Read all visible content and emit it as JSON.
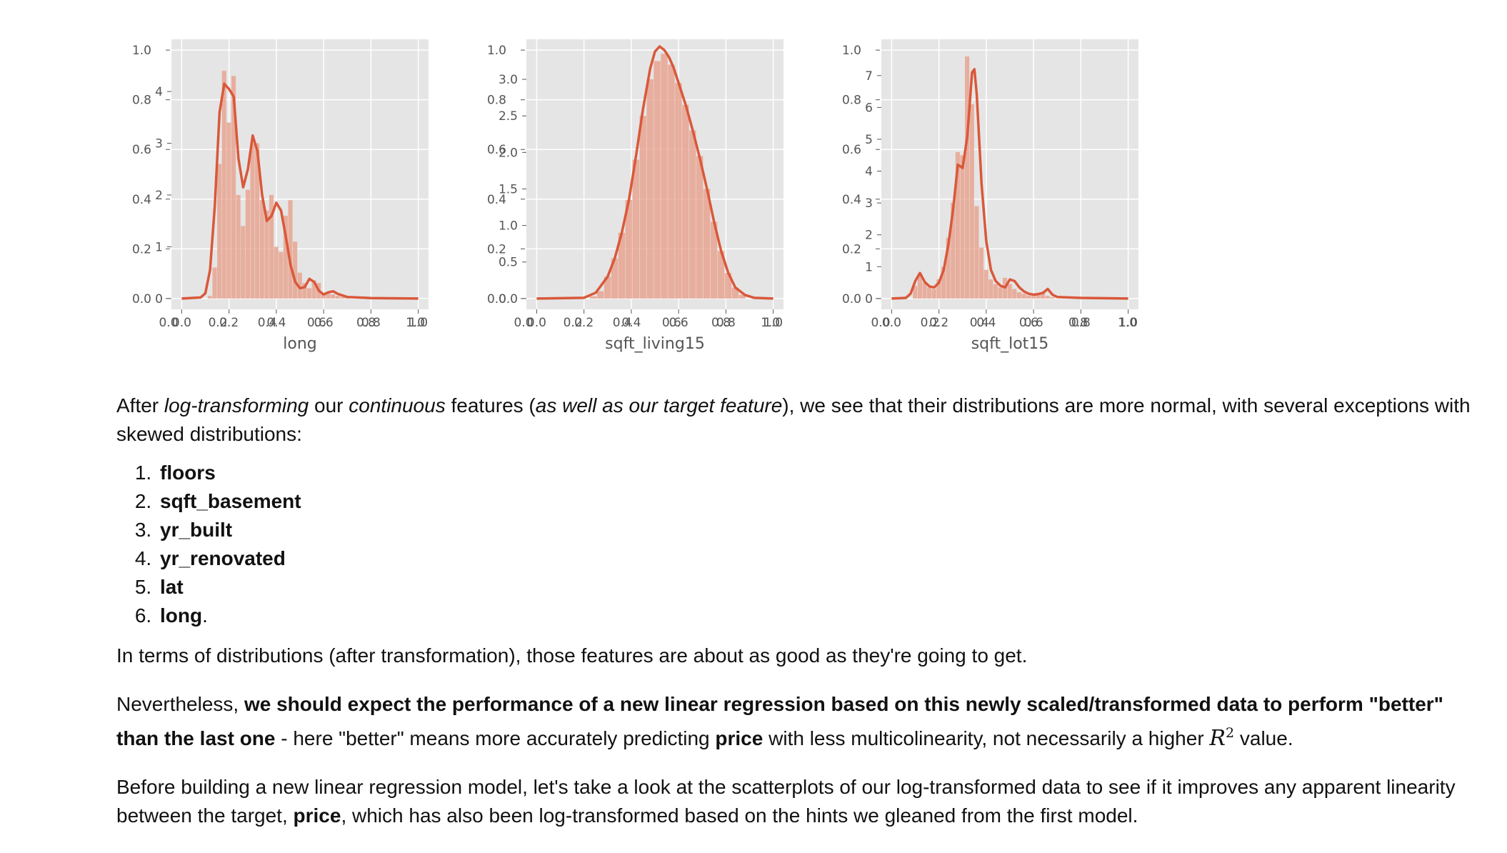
{
  "charts": [
    {
      "id": "long",
      "chart_data": {
        "type": "bar",
        "xlabel": "long",
        "y_ticks_front": [
          "0.0",
          "0.2",
          "0.4",
          "0.6",
          "0.8",
          "1.0"
        ],
        "y_ticks_back": [
          "0",
          "1",
          "2",
          "3",
          "4"
        ],
        "y_back_max": 4.8,
        "x_ticks_front": [
          "0.0",
          "0.2",
          "0.4",
          "0.6",
          "0.8",
          "1.0"
        ],
        "x_ticks_back": [
          "0.0",
          "0.2",
          "0.4",
          "0.6",
          "0.8",
          "1.0"
        ],
        "x": [
          0.12,
          0.14,
          0.16,
          0.18,
          0.2,
          0.22,
          0.24,
          0.26,
          0.28,
          0.3,
          0.32,
          0.34,
          0.36,
          0.38,
          0.4,
          0.42,
          0.44,
          0.46,
          0.48,
          0.5,
          0.52,
          0.54,
          0.56,
          0.58,
          0.6,
          0.62,
          0.64,
          0.66,
          0.68,
          0.7
        ],
        "values": [
          0.05,
          0.6,
          2.6,
          4.4,
          3.4,
          4.3,
          2.0,
          1.4,
          2.1,
          3.0,
          3.0,
          1.9,
          1.7,
          2.0,
          1.0,
          0.9,
          1.6,
          1.9,
          1.1,
          0.5,
          0.3,
          0.2,
          0.35,
          0.3,
          0.1,
          0.12,
          0.08,
          0.05,
          0.03,
          0.02
        ],
        "kde_x": [
          0.0,
          0.08,
          0.1,
          0.12,
          0.14,
          0.16,
          0.18,
          0.2,
          0.22,
          0.24,
          0.26,
          0.28,
          0.3,
          0.32,
          0.34,
          0.36,
          0.38,
          0.4,
          0.42,
          0.44,
          0.46,
          0.48,
          0.5,
          0.52,
          0.54,
          0.56,
          0.58,
          0.6,
          0.62,
          0.64,
          0.66,
          0.7,
          0.8,
          1.0
        ],
        "kde_y": [
          0,
          0.02,
          0.1,
          0.55,
          1.8,
          3.6,
          4.15,
          4.05,
          3.9,
          2.7,
          2.15,
          2.5,
          3.15,
          2.85,
          2.0,
          1.5,
          1.6,
          1.85,
          1.7,
          1.2,
          0.65,
          0.32,
          0.2,
          0.22,
          0.38,
          0.32,
          0.15,
          0.08,
          0.12,
          0.14,
          0.09,
          0.03,
          0.01,
          0
        ]
      }
    },
    {
      "id": "sqft_living15",
      "chart_data": {
        "type": "bar",
        "xlabel": "sqft_living15",
        "y_ticks_front": [
          "0.0",
          "0.2",
          "0.4",
          "0.6",
          "0.8",
          "1.0"
        ],
        "y_ticks_back": [
          "0.0",
          "0.5",
          "1.0",
          "1.5",
          "2.0",
          "2.5",
          "3.0"
        ],
        "y_back_max": 3.4,
        "x_ticks_front": [
          "0.0",
          "0.2",
          "0.4",
          "0.6",
          "0.8",
          "1.0"
        ],
        "x_ticks_back": [
          "0.0",
          "0.2",
          "0.4",
          "0.6",
          "0.8",
          "1.0"
        ],
        "x": [
          0.24,
          0.27,
          0.3,
          0.33,
          0.36,
          0.39,
          0.42,
          0.45,
          0.48,
          0.51,
          0.54,
          0.57,
          0.6,
          0.63,
          0.66,
          0.69,
          0.72,
          0.75,
          0.78,
          0.81,
          0.84,
          0.87
        ],
        "values": [
          0.03,
          0.1,
          0.3,
          0.55,
          0.9,
          1.35,
          1.9,
          2.5,
          3.0,
          3.25,
          3.35,
          3.2,
          2.95,
          2.65,
          2.3,
          1.95,
          1.5,
          1.05,
          0.65,
          0.35,
          0.15,
          0.05
        ],
        "kde_x": [
          0.0,
          0.2,
          0.25,
          0.3,
          0.33,
          0.36,
          0.39,
          0.42,
          0.45,
          0.48,
          0.5,
          0.52,
          0.54,
          0.56,
          0.58,
          0.6,
          0.63,
          0.66,
          0.69,
          0.72,
          0.75,
          0.78,
          0.81,
          0.84,
          0.88,
          0.92,
          1.0
        ],
        "kde_y": [
          0,
          0.01,
          0.08,
          0.3,
          0.55,
          0.9,
          1.35,
          1.95,
          2.6,
          3.15,
          3.38,
          3.45,
          3.4,
          3.3,
          3.15,
          2.95,
          2.65,
          2.3,
          1.92,
          1.5,
          1.05,
          0.65,
          0.35,
          0.15,
          0.05,
          0.01,
          0
        ]
      }
    },
    {
      "id": "sqft_lot15",
      "chart_data": {
        "type": "bar",
        "xlabel": "sqft_lot15",
        "y_ticks_front": [
          "0.0",
          "0.2",
          "0.4",
          "0.6",
          "0.8",
          "1.0"
        ],
        "y_ticks_back": [
          "0",
          "1",
          "2",
          "3",
          "4",
          "5",
          "6",
          "7"
        ],
        "y_back_max": 7.8,
        "x_ticks_front": [
          "0.0",
          "0.2",
          "0.4",
          "0.6",
          "0.8",
          "1.0"
        ],
        "x_ticks_back": [
          "0.0",
          "0.2",
          "0.4",
          "0.6",
          "0.8",
          "1.0"
        ],
        "x": [
          0.1,
          0.12,
          0.14,
          0.16,
          0.18,
          0.2,
          0.22,
          0.24,
          0.26,
          0.28,
          0.3,
          0.32,
          0.34,
          0.36,
          0.38,
          0.4,
          0.42,
          0.44,
          0.46,
          0.48,
          0.5,
          0.52,
          0.54,
          0.56,
          0.58,
          0.6,
          0.62,
          0.64,
          0.66,
          0.68
        ],
        "values": [
          0.4,
          0.8,
          0.5,
          0.35,
          0.3,
          0.6,
          1.0,
          1.9,
          3.0,
          4.6,
          4.5,
          7.6,
          6.1,
          2.9,
          1.6,
          0.9,
          0.6,
          0.45,
          0.35,
          0.65,
          0.45,
          0.3,
          0.2,
          0.15,
          0.1,
          0.08,
          0.12,
          0.2,
          0.08,
          0.04
        ],
        "kde_x": [
          0.0,
          0.06,
          0.08,
          0.1,
          0.12,
          0.14,
          0.16,
          0.18,
          0.2,
          0.22,
          0.24,
          0.26,
          0.28,
          0.3,
          0.32,
          0.34,
          0.35,
          0.36,
          0.38,
          0.4,
          0.42,
          0.44,
          0.46,
          0.48,
          0.5,
          0.52,
          0.54,
          0.56,
          0.58,
          0.6,
          0.62,
          0.64,
          0.66,
          0.68,
          0.7,
          0.8,
          1.0
        ],
        "kde_y": [
          0,
          0.02,
          0.15,
          0.55,
          0.8,
          0.52,
          0.38,
          0.35,
          0.5,
          0.9,
          1.7,
          2.8,
          4.2,
          4.1,
          5.1,
          7.1,
          7.2,
          6.4,
          3.6,
          1.8,
          0.9,
          0.55,
          0.4,
          0.35,
          0.6,
          0.55,
          0.35,
          0.22,
          0.15,
          0.12,
          0.14,
          0.18,
          0.3,
          0.12,
          0.05,
          0.02,
          0
        ]
      }
    }
  ],
  "text": {
    "p1_a": "After ",
    "p1_b": "log-transforming",
    "p1_c": " our ",
    "p1_d": "continuous",
    "p1_e": " features (",
    "p1_f": "as well as our target feature",
    "p1_g": "), we see that their distributions are more normal, with several exceptions with skewed distributions:",
    "list": [
      "floors",
      "sqft_basement",
      "yr_built",
      "yr_renovated",
      "lat",
      "long"
    ],
    "list_last_suffix": ".",
    "p2": "In terms of distributions (after transformation), those features are about as good as they're going to get.",
    "p3_a": "Nevertheless, ",
    "p3_b": "we should expect the performance of a new linear regression based on this newly scaled/transformed data to perform \"better\" than the last one",
    "p3_c": " - here \"better\" means more accurately predicting ",
    "p3_d": "price",
    "p3_e": " with less multicolinearity, not necessarily a higher ",
    "p3_r": "R",
    "p3_sup": "2",
    "p3_f": " value.",
    "p4_a": "Before building a new linear regression model, let's take a look at the scatterplots of our log-transformed data to see if it improves any apparent linearity between the target, ",
    "p4_b": "price",
    "p4_c": ", which has also been log-transformed based on the hints we gleaned from the first model."
  },
  "colors": {
    "plot_bg": "#e5e5e5",
    "grid": "#ffffff",
    "bar": "#e8a592",
    "kde": "#d9583a",
    "tick_text": "#555555"
  }
}
